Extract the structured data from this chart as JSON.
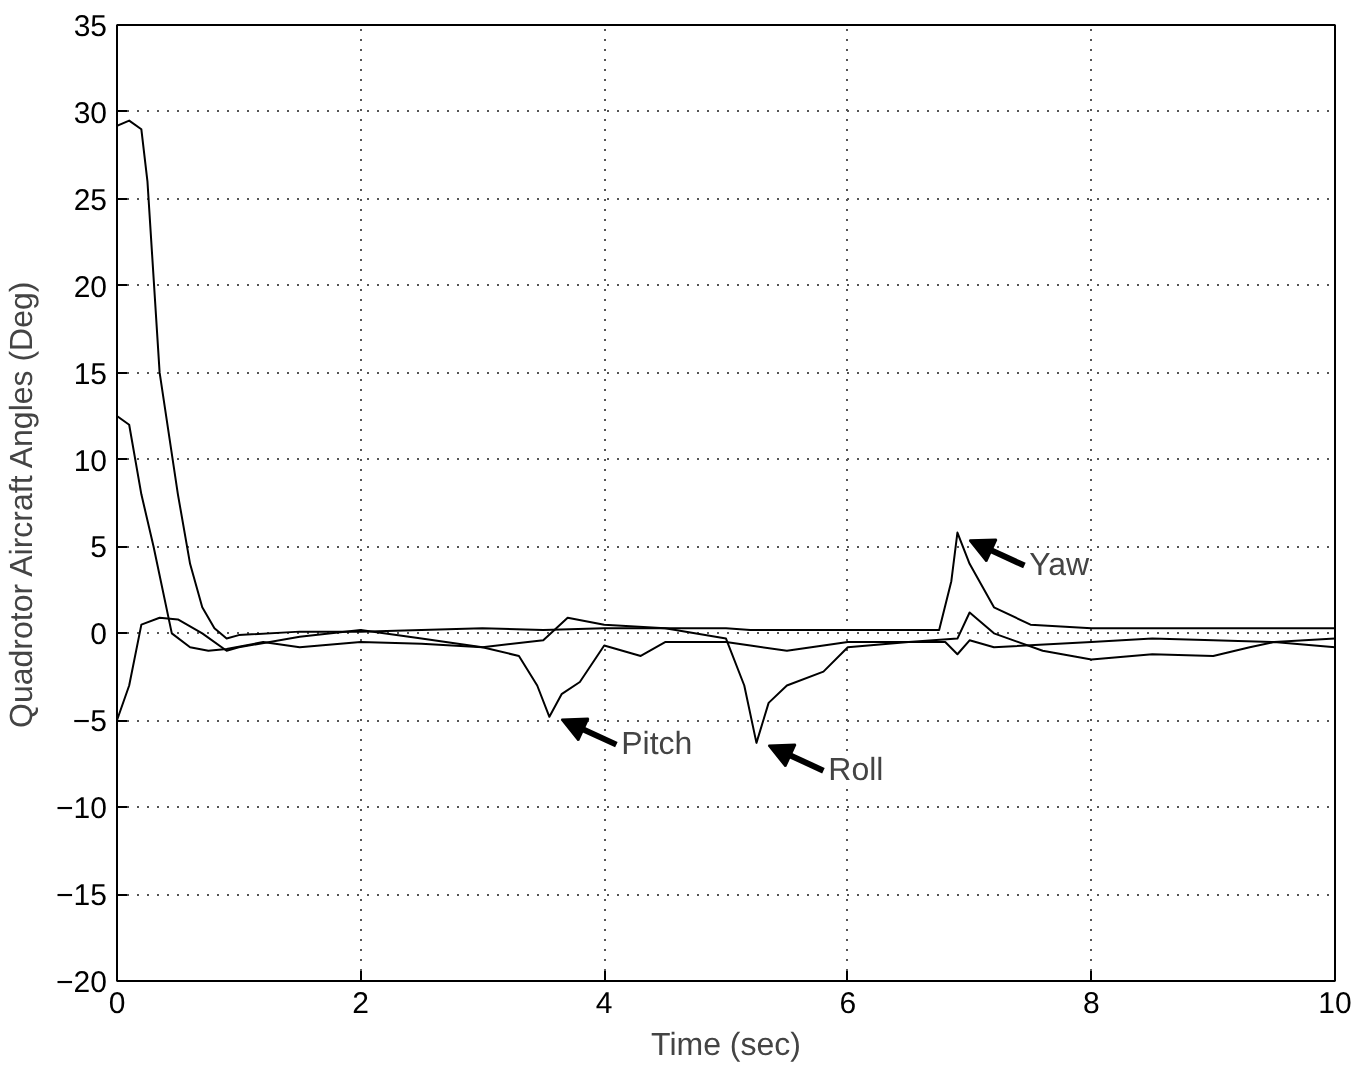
{
  "chart_data": {
    "type": "line",
    "xlabel": "Time (sec)",
    "ylabel": "Quadrotor Aircraft Angles (Deg)",
    "xlim": [
      0,
      10
    ],
    "ylim": [
      -20,
      35
    ],
    "xticks": [
      0,
      2,
      4,
      6,
      8,
      10
    ],
    "yticks": [
      -20,
      -15,
      -10,
      -5,
      0,
      5,
      10,
      15,
      20,
      25,
      30,
      35
    ],
    "grid": true,
    "line_style": "solid",
    "series": [
      {
        "color": "#000000",
        "x": [
          0,
          0.1,
          0.2,
          0.25,
          0.35,
          0.5,
          0.6,
          0.7,
          0.8,
          0.9,
          1.0,
          1.5,
          2,
          3,
          3.5,
          4,
          5,
          5.2,
          5.5,
          6,
          6.5,
          6.75,
          6.85,
          6.9,
          7.0,
          7.2,
          7.5,
          8,
          9,
          10
        ],
        "values": [
          29.2,
          29.5,
          29,
          26,
          15,
          8,
          4,
          1.5,
          0.3,
          -0.3,
          -0.1,
          0.1,
          0.1,
          0.3,
          0.2,
          0.3,
          0.3,
          0.2,
          0.2,
          0.2,
          0.2,
          0.2,
          3,
          5.8,
          4,
          1.5,
          0.5,
          0.3,
          0.3,
          0.3
        ]
      },
      {
        "color": "#000000",
        "x": [
          0,
          0.1,
          0.2,
          0.35,
          0.5,
          0.7,
          0.9,
          1.0,
          1.5,
          2,
          2.5,
          3,
          3.3,
          3.45,
          3.55,
          3.65,
          3.8,
          4,
          4.3,
          4.5,
          5,
          5.2,
          5.5,
          6,
          6.8,
          6.9,
          7,
          7.2,
          8,
          8.5,
          9,
          9.5,
          10
        ],
        "values": [
          -5,
          -3,
          0.5,
          0.9,
          0.8,
          0,
          -1,
          -0.8,
          -0.2,
          0.2,
          -0.3,
          -0.8,
          -1.3,
          -3,
          -4.8,
          -3.5,
          -2.8,
          -0.7,
          -1.3,
          -0.5,
          -0.5,
          -0.7,
          -1,
          -0.5,
          -0.5,
          -1.2,
          -0.4,
          -0.8,
          -0.5,
          -0.3,
          -0.4,
          -0.5,
          -0.3
        ]
      },
      {
        "color": "#000000",
        "x": [
          0,
          0.1,
          0.2,
          0.3,
          0.45,
          0.6,
          0.75,
          0.9,
          1.2,
          1.5,
          2,
          2.5,
          3,
          3.5,
          3.7,
          4,
          4.5,
          5,
          5.15,
          5.25,
          5.35,
          5.5,
          5.8,
          6,
          6.5,
          6.9,
          7.0,
          7.2,
          7.6,
          8,
          8.5,
          9,
          9.3,
          9.5,
          10
        ],
        "values": [
          12.5,
          12,
          8,
          5,
          0,
          -0.8,
          -1,
          -0.9,
          -0.5,
          -0.8,
          -0.5,
          -0.6,
          -0.8,
          -0.4,
          0.9,
          0.5,
          0.3,
          -0.3,
          -3,
          -6.3,
          -4,
          -3,
          -2.2,
          -0.8,
          -0.5,
          -0.3,
          1.2,
          0,
          -1,
          -1.5,
          -1.2,
          -1.3,
          -0.8,
          -0.5,
          -0.8
        ]
      }
    ],
    "annotations": [
      {
        "text": "Pitch",
        "x": 3.6,
        "y": -4.8
      },
      {
        "text": "Roll",
        "x": 5.3,
        "y": -6.3
      },
      {
        "text": "Yaw",
        "x": 6.95,
        "y": 5.5
      }
    ]
  }
}
